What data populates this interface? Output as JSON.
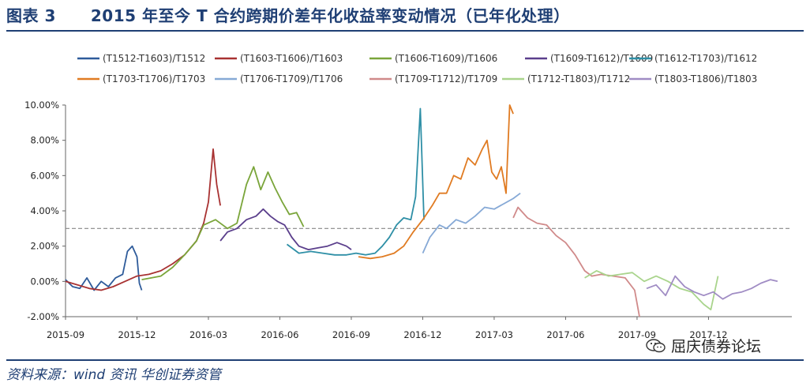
{
  "header": {
    "figure_no": "图表 3",
    "title": "2015 年至今 T 合约跨期价差年化收益率变动情况（已年化处理）"
  },
  "footer": {
    "source": "资料来源：wind 资讯   华创证券资管",
    "watermark": "屈庆债券论坛"
  },
  "chart_data": {
    "type": "line",
    "title": "",
    "xlabel": "",
    "ylabel": "",
    "x_unit": "months since 2015-09",
    "xlim": [
      0,
      30.5
    ],
    "ylim": [
      -2,
      10
    ],
    "y_ticks": [
      "-2.00%",
      "0.00%",
      "2.00%",
      "4.00%",
      "6.00%",
      "8.00%",
      "10.00%"
    ],
    "x_ticks": [
      {
        "pos": 0,
        "label": "2015-09"
      },
      {
        "pos": 3,
        "label": "2015-12"
      },
      {
        "pos": 6,
        "label": "2016-03"
      },
      {
        "pos": 9,
        "label": "2016-06"
      },
      {
        "pos": 12,
        "label": "2016-09"
      },
      {
        "pos": 15,
        "label": "2016-12"
      },
      {
        "pos": 18,
        "label": "2017-03"
      },
      {
        "pos": 21,
        "label": "2017-06"
      },
      {
        "pos": 24,
        "label": "2017-09"
      },
      {
        "pos": 27,
        "label": "2017-12"
      }
    ],
    "reference_line": 3.0,
    "legend_position": "top",
    "series": [
      {
        "name": "(T1512-T1603)/T1512",
        "color": "#2e5b9a",
        "points": [
          [
            0,
            0.1
          ],
          [
            0.3,
            -0.3
          ],
          [
            0.6,
            -0.4
          ],
          [
            0.9,
            0.2
          ],
          [
            1.2,
            -0.5
          ],
          [
            1.5,
            0.0
          ],
          [
            1.8,
            -0.3
          ],
          [
            2.1,
            0.2
          ],
          [
            2.4,
            0.4
          ],
          [
            2.6,
            1.7
          ],
          [
            2.8,
            2.0
          ],
          [
            3.0,
            1.4
          ],
          [
            3.1,
            -0.1
          ],
          [
            3.2,
            -0.5
          ]
        ]
      },
      {
        "name": "(T1603-T1606)/T1603",
        "color": "#a83232",
        "points": [
          [
            0,
            0.0
          ],
          [
            0.5,
            -0.2
          ],
          [
            1.0,
            -0.4
          ],
          [
            1.5,
            -0.5
          ],
          [
            2.0,
            -0.3
          ],
          [
            2.5,
            0.0
          ],
          [
            3.0,
            0.3
          ],
          [
            3.5,
            0.4
          ],
          [
            4.0,
            0.6
          ],
          [
            4.5,
            1.0
          ],
          [
            5.0,
            1.5
          ],
          [
            5.5,
            2.3
          ],
          [
            5.8,
            3.3
          ],
          [
            6.0,
            4.5
          ],
          [
            6.2,
            7.5
          ],
          [
            6.35,
            5.5
          ],
          [
            6.5,
            4.3
          ]
        ]
      },
      {
        "name": "(T1606-T1609)/T1606",
        "color": "#7aa53a",
        "points": [
          [
            3.2,
            0.1
          ],
          [
            4.0,
            0.3
          ],
          [
            4.5,
            0.8
          ],
          [
            5.0,
            1.5
          ],
          [
            5.5,
            2.3
          ],
          [
            5.8,
            3.2
          ],
          [
            6.3,
            3.5
          ],
          [
            6.8,
            3.0
          ],
          [
            7.2,
            3.3
          ],
          [
            7.6,
            5.5
          ],
          [
            7.9,
            6.5
          ],
          [
            8.2,
            5.2
          ],
          [
            8.5,
            6.2
          ],
          [
            8.8,
            5.3
          ],
          [
            9.1,
            4.5
          ],
          [
            9.4,
            3.8
          ],
          [
            9.7,
            3.9
          ],
          [
            10.0,
            3.1
          ]
        ]
      },
      {
        "name": "(T1609-T1612)/T1609",
        "color": "#5b3f8c",
        "points": [
          [
            6.5,
            2.3
          ],
          [
            6.8,
            2.8
          ],
          [
            7.2,
            3.0
          ],
          [
            7.6,
            3.5
          ],
          [
            8.0,
            3.7
          ],
          [
            8.3,
            4.1
          ],
          [
            8.6,
            3.7
          ],
          [
            8.9,
            3.4
          ],
          [
            9.2,
            3.2
          ],
          [
            9.5,
            2.5
          ],
          [
            9.8,
            2.0
          ],
          [
            10.2,
            1.8
          ],
          [
            10.6,
            1.9
          ],
          [
            11.0,
            2.0
          ],
          [
            11.4,
            2.2
          ],
          [
            11.8,
            2.0
          ],
          [
            12.0,
            1.8
          ]
        ]
      },
      {
        "name": "(T1612-T1703)/T1612",
        "color": "#2e8fa6",
        "points": [
          [
            9.3,
            2.1
          ],
          [
            9.8,
            1.6
          ],
          [
            10.3,
            1.7
          ],
          [
            10.8,
            1.6
          ],
          [
            11.3,
            1.5
          ],
          [
            11.8,
            1.5
          ],
          [
            12.2,
            1.6
          ],
          [
            12.6,
            1.5
          ],
          [
            13.0,
            1.6
          ],
          [
            13.3,
            2.0
          ],
          [
            13.6,
            2.5
          ],
          [
            13.9,
            3.2
          ],
          [
            14.2,
            3.6
          ],
          [
            14.5,
            3.5
          ],
          [
            14.7,
            4.8
          ],
          [
            14.9,
            9.8
          ],
          [
            15.05,
            3.5
          ]
        ]
      },
      {
        "name": "(T1703-T1706)/T1703",
        "color": "#e07b22",
        "points": [
          [
            12.3,
            1.4
          ],
          [
            12.8,
            1.3
          ],
          [
            13.3,
            1.4
          ],
          [
            13.8,
            1.6
          ],
          [
            14.2,
            2.0
          ],
          [
            14.6,
            2.8
          ],
          [
            15.0,
            3.5
          ],
          [
            15.4,
            4.3
          ],
          [
            15.7,
            5.0
          ],
          [
            16.0,
            5.0
          ],
          [
            16.3,
            6.0
          ],
          [
            16.6,
            5.8
          ],
          [
            16.9,
            7.0
          ],
          [
            17.2,
            6.6
          ],
          [
            17.5,
            7.5
          ],
          [
            17.7,
            8.0
          ],
          [
            17.9,
            6.2
          ],
          [
            18.1,
            5.8
          ],
          [
            18.3,
            6.5
          ],
          [
            18.5,
            5.0
          ],
          [
            18.65,
            10.0
          ],
          [
            18.8,
            9.5
          ]
        ]
      },
      {
        "name": "(T1706-T1709)/T1706",
        "color": "#86a9d6",
        "points": [
          [
            15.0,
            1.6
          ],
          [
            15.3,
            2.5
          ],
          [
            15.7,
            3.2
          ],
          [
            16.0,
            3.0
          ],
          [
            16.4,
            3.5
          ],
          [
            16.8,
            3.3
          ],
          [
            17.2,
            3.7
          ],
          [
            17.6,
            4.2
          ],
          [
            18.0,
            4.1
          ],
          [
            18.4,
            4.4
          ],
          [
            18.8,
            4.7
          ],
          [
            19.1,
            5.0
          ]
        ]
      },
      {
        "name": "(T1709-T1712)/T1709",
        "color": "#d08a8a",
        "points": [
          [
            18.8,
            3.6
          ],
          [
            19.0,
            4.2
          ],
          [
            19.4,
            3.6
          ],
          [
            19.8,
            3.3
          ],
          [
            20.2,
            3.2
          ],
          [
            20.6,
            2.6
          ],
          [
            21.0,
            2.2
          ],
          [
            21.4,
            1.5
          ],
          [
            21.8,
            0.6
          ],
          [
            22.1,
            0.3
          ],
          [
            22.5,
            0.4
          ],
          [
            23.0,
            0.3
          ],
          [
            23.5,
            0.2
          ],
          [
            23.9,
            -0.5
          ],
          [
            24.1,
            -2.0
          ]
        ]
      },
      {
        "name": "(T1712-T1803)/T1712",
        "color": "#a9d48c",
        "points": [
          [
            21.8,
            0.2
          ],
          [
            22.3,
            0.6
          ],
          [
            22.8,
            0.3
          ],
          [
            23.3,
            0.4
          ],
          [
            23.8,
            0.5
          ],
          [
            24.3,
            0.0
          ],
          [
            24.8,
            0.3
          ],
          [
            25.3,
            0.0
          ],
          [
            25.8,
            -0.4
          ],
          [
            26.3,
            -0.6
          ],
          [
            26.8,
            -1.3
          ],
          [
            27.1,
            -1.6
          ],
          [
            27.4,
            0.3
          ]
        ]
      },
      {
        "name": "(T1803-T1806)/T1803",
        "color": "#a08cc4",
        "points": [
          [
            24.4,
            -0.4
          ],
          [
            24.8,
            -0.2
          ],
          [
            25.2,
            -0.8
          ],
          [
            25.6,
            0.3
          ],
          [
            26.0,
            -0.3
          ],
          [
            26.4,
            -0.6
          ],
          [
            26.8,
            -0.8
          ],
          [
            27.2,
            -0.6
          ],
          [
            27.6,
            -1.0
          ],
          [
            28.0,
            -0.7
          ],
          [
            28.4,
            -0.6
          ],
          [
            28.8,
            -0.4
          ],
          [
            29.2,
            -0.1
          ],
          [
            29.6,
            0.1
          ],
          [
            29.9,
            0.0
          ]
        ]
      }
    ]
  }
}
